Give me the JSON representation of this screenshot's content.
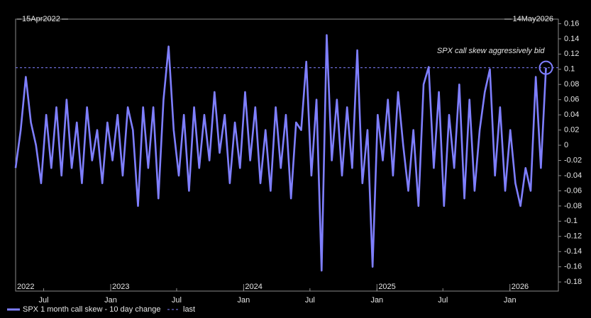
{
  "chart_data": {
    "type": "line",
    "start_label": "15Apr2022",
    "end_label": "14May2026",
    "annotation": "SPX call skew aggressively bid",
    "last_label": "last",
    "xlim": [
      "2022-04-15",
      "2026-05-14"
    ],
    "ylim": [
      -0.192,
      0.166
    ],
    "yticks": [
      0.16,
      0.14,
      0.12,
      0.1,
      0.08,
      0.06,
      0.04,
      0.02,
      0,
      -0.02,
      -0.04,
      -0.06,
      -0.08,
      -0.1,
      -0.12,
      -0.14,
      -0.16,
      -0.18
    ],
    "xticks": [
      {
        "value": "2022-07-01",
        "label": "Jul"
      },
      {
        "value": "2023-01-01",
        "label": "Jan"
      },
      {
        "value": "2023-07-01",
        "label": "Jul"
      },
      {
        "value": "2024-01-01",
        "label": "Jan"
      },
      {
        "value": "2024-07-01",
        "label": "Jul"
      },
      {
        "value": "2025-01-01",
        "label": "Jan"
      },
      {
        "value": "2025-07-01",
        "label": "Jul"
      },
      {
        "value": "2026-01-01",
        "label": "Jan"
      }
    ],
    "year_labels": [
      {
        "value": "2022-04-15",
        "label": "2022"
      },
      {
        "value": "2023-01-01",
        "label": "2023"
      },
      {
        "value": "2024-01-01",
        "label": "2024"
      },
      {
        "value": "2025-01-01",
        "label": "2025"
      },
      {
        "value": "2026-01-01",
        "label": "2026"
      }
    ],
    "x": [
      "2022-04-15",
      "2022-04-29",
      "2022-05-13",
      "2022-05-27",
      "2022-06-10",
      "2022-06-24",
      "2022-07-08",
      "2022-07-22",
      "2022-08-05",
      "2022-08-19",
      "2022-09-02",
      "2022-09-16",
      "2022-09-30",
      "2022-10-14",
      "2022-10-28",
      "2022-11-11",
      "2022-11-25",
      "2022-12-09",
      "2022-12-23",
      "2023-01-06",
      "2023-01-20",
      "2023-02-03",
      "2023-02-17",
      "2023-03-03",
      "2023-03-17",
      "2023-03-31",
      "2023-04-14",
      "2023-04-28",
      "2023-05-12",
      "2023-05-26",
      "2023-06-09",
      "2023-06-23",
      "2023-07-07",
      "2023-07-21",
      "2023-08-04",
      "2023-08-18",
      "2023-09-01",
      "2023-09-15",
      "2023-09-29",
      "2023-10-13",
      "2023-10-27",
      "2023-11-10",
      "2023-11-24",
      "2023-12-08",
      "2023-12-22",
      "2024-01-05",
      "2024-01-19",
      "2024-02-02",
      "2024-02-16",
      "2024-03-01",
      "2024-03-15",
      "2024-03-29",
      "2024-04-12",
      "2024-04-26",
      "2024-05-10",
      "2024-05-24",
      "2024-06-07",
      "2024-06-21",
      "2024-07-05",
      "2024-07-19",
      "2024-08-02",
      "2024-08-16",
      "2024-08-30",
      "2024-09-13",
      "2024-09-27",
      "2024-10-11",
      "2024-10-25",
      "2024-11-08",
      "2024-11-22",
      "2024-12-06",
      "2024-12-20",
      "2025-01-03",
      "2025-01-17",
      "2025-01-31",
      "2025-02-14",
      "2025-02-28",
      "2025-03-14",
      "2025-03-28",
      "2025-04-11",
      "2025-04-25",
      "2025-05-09",
      "2025-05-23",
      "2025-06-06",
      "2025-06-20",
      "2025-07-04",
      "2025-07-18",
      "2025-08-01",
      "2025-08-15",
      "2025-08-29",
      "2025-09-12",
      "2025-09-26",
      "2025-10-10",
      "2025-10-24",
      "2025-11-07",
      "2025-11-21",
      "2025-12-05",
      "2025-12-19",
      "2026-01-02",
      "2026-01-16",
      "2026-01-30",
      "2026-02-13",
      "2026-02-27",
      "2026-03-13",
      "2026-03-27",
      "2026-04-10"
    ],
    "series": [
      {
        "name": "SPX 1 month call skew - 10 day change",
        "color": "#7f7fff",
        "values": [
          -0.03,
          0.02,
          0.09,
          0.03,
          0.0,
          -0.05,
          0.04,
          -0.03,
          0.05,
          -0.04,
          0.06,
          -0.03,
          0.03,
          -0.05,
          0.05,
          -0.02,
          0.02,
          -0.05,
          0.03,
          -0.02,
          0.04,
          -0.04,
          0.05,
          0.02,
          -0.08,
          0.05,
          -0.03,
          0.05,
          -0.07,
          0.06,
          0.13,
          0.02,
          -0.04,
          0.04,
          -0.06,
          0.05,
          -0.03,
          0.04,
          -0.02,
          0.07,
          -0.01,
          0.04,
          -0.05,
          0.03,
          -0.03,
          0.07,
          -0.02,
          0.05,
          -0.05,
          0.02,
          -0.06,
          0.05,
          -0.03,
          0.04,
          -0.07,
          0.03,
          0.02,
          0.11,
          -0.04,
          0.06,
          -0.165,
          0.145,
          -0.02,
          0.06,
          -0.04,
          0.05,
          -0.03,
          0.125,
          -0.05,
          0.02,
          -0.16,
          0.04,
          -0.02,
          0.06,
          -0.04,
          0.07,
          0.0,
          -0.06,
          0.02,
          -0.08,
          0.08,
          0.103,
          -0.03,
          0.07,
          -0.08,
          0.04,
          -0.03,
          0.08,
          -0.07,
          0.06,
          -0.06,
          0.02,
          0.07,
          0.1,
          -0.04,
          0.05,
          -0.06,
          0.02,
          -0.05,
          -0.08,
          -0.03,
          -0.06,
          0.09,
          -0.03,
          0.102
        ]
      }
    ]
  }
}
